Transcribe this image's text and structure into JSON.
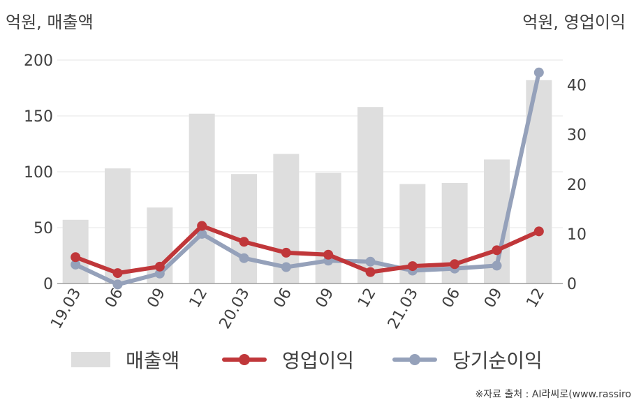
{
  "units": {
    "left": "억원, 매출액",
    "right": "억원, 영업이익"
  },
  "source": "※자료 출처 : AI라씨로(www.rassiro",
  "colors": {
    "revenue": "#dedede",
    "operating_profit": "#c0373a",
    "net_income": "#95a1ba",
    "grid": "#e6e6e6",
    "axis": "#9e9e9e",
    "text": "#404040"
  },
  "chart_data": {
    "type": "bar",
    "categories": [
      "19.03",
      "06",
      "09",
      "12",
      "20.03",
      "06",
      "09",
      "12",
      "21.03",
      "06",
      "09",
      "12"
    ],
    "y_left": {
      "ylim": [
        0,
        200
      ],
      "ticks": [
        0,
        50,
        100,
        150,
        200
      ]
    },
    "y_right": {
      "ylim": [
        0,
        45
      ],
      "ticks": [
        0,
        10,
        20,
        30,
        40
      ]
    },
    "grid": true,
    "legend_position": "bottom",
    "series": [
      {
        "name": "매출액",
        "type": "bar",
        "axis": "left",
        "values": [
          57,
          103,
          68,
          152,
          98,
          116,
          99,
          158,
          89,
          90,
          111,
          182
        ]
      },
      {
        "name": "영업이익",
        "type": "line",
        "axis": "right",
        "values": [
          5.3,
          2.1,
          3.4,
          11.6,
          8.4,
          6.2,
          5.8,
          2.3,
          3.5,
          3.9,
          6.7,
          10.5
        ]
      },
      {
        "name": "당기순이익",
        "type": "line",
        "axis": "right",
        "values": [
          3.8,
          -0.2,
          2.0,
          10.0,
          5.1,
          3.3,
          4.6,
          4.4,
          2.6,
          3.0,
          3.6,
          42.5
        ]
      }
    ]
  }
}
